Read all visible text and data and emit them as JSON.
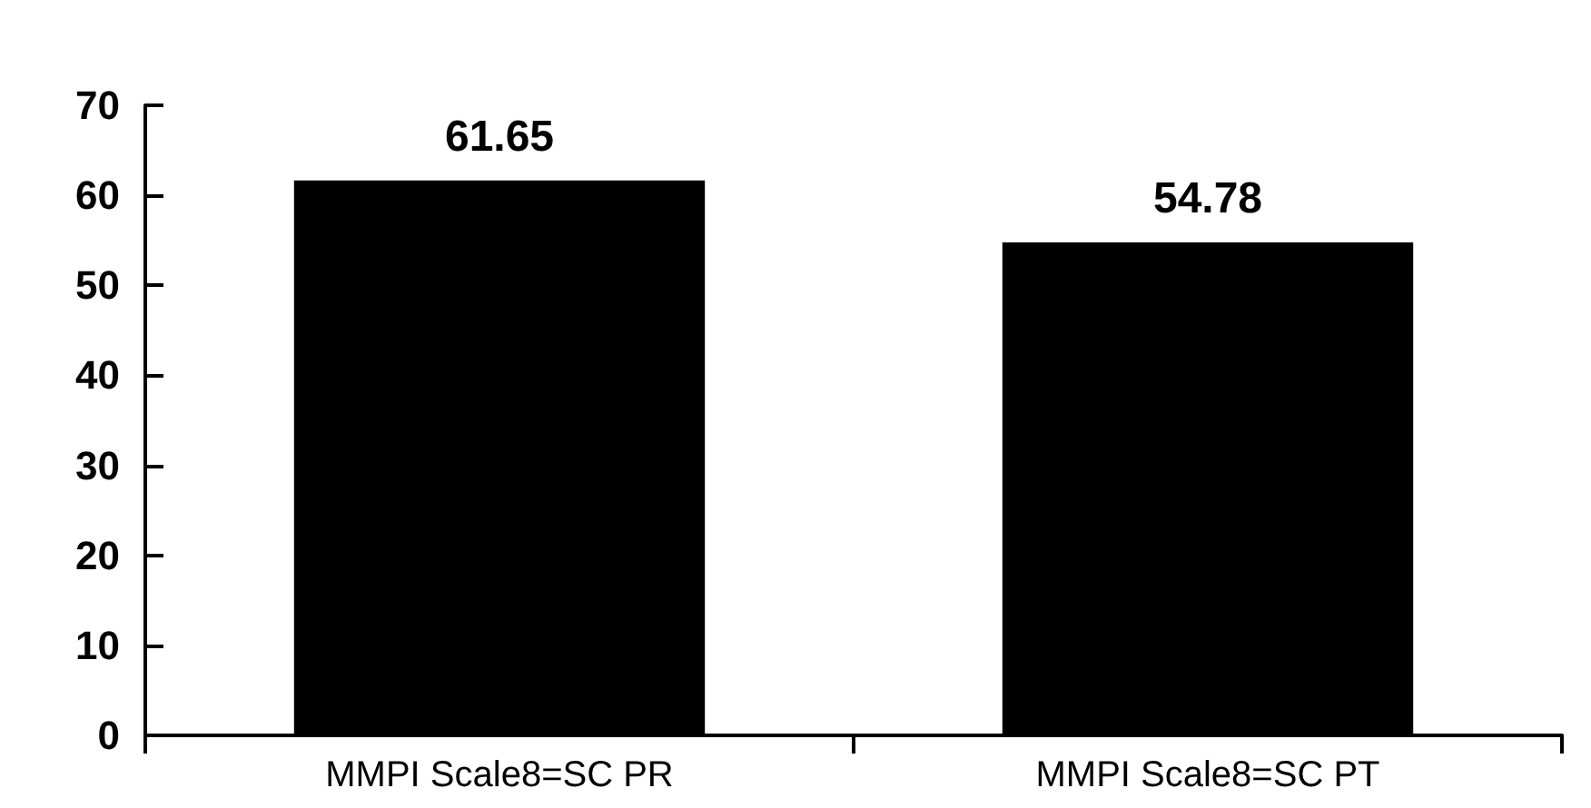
{
  "chart_data": {
    "type": "bar",
    "categories": [
      "MMPI Scale8=SC PR",
      "MMPI Scale8=SC PT"
    ],
    "values": [
      61.65,
      54.78
    ],
    "color": "#000000",
    "ylim": [
      0,
      70
    ],
    "yticks": [
      0,
      10,
      20,
      30,
      40,
      50,
      60,
      70
    ],
    "data_labels": true,
    "grid": false
  }
}
